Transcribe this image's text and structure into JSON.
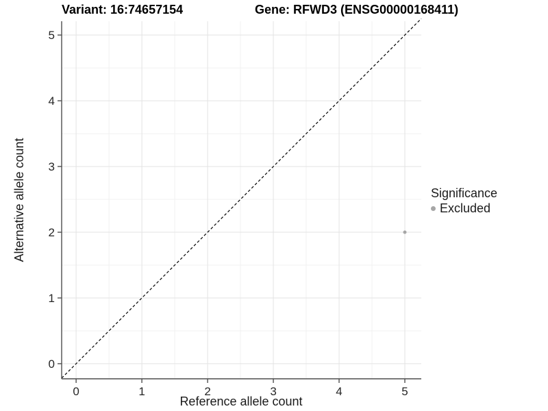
{
  "titles": {
    "variant": "Variant: 16:74657154",
    "gene": "Gene: RFWD3 (ENSG00000168411)"
  },
  "chart_data": {
    "type": "scatter",
    "title_left": "Variant: 16:74657154",
    "title_right": "Gene: RFWD3 (ENSG00000168411)",
    "xlabel": "Reference allele count",
    "ylabel": "Alternative allele count",
    "xlim": [
      -0.22,
      5.25
    ],
    "ylim": [
      -0.23,
      5.21
    ],
    "xticks": [
      0,
      1,
      2,
      3,
      4,
      5
    ],
    "yticks": [
      0,
      1,
      2,
      3,
      4,
      5
    ],
    "minor_ticks_x": [
      0.5,
      1.5,
      2.5,
      3.5,
      4.5
    ],
    "minor_ticks_y": [
      0.5,
      1.5,
      2.5,
      3.5,
      4.5
    ],
    "grid": true,
    "legend_position": "right",
    "series": [
      {
        "name": "Excluded",
        "color": "#a6a6a6",
        "points": [
          {
            "x": 5,
            "y": 2
          }
        ]
      }
    ],
    "reference_line": {
      "type": "identity",
      "slope": 1,
      "intercept": 0,
      "style": "dashed",
      "color": "#000000"
    },
    "legend": {
      "title": "Significance",
      "entries": [
        {
          "label": "Excluded",
          "color": "#a6a6a6"
        }
      ]
    },
    "colors": {
      "axis": "#4d4d4d",
      "tick_text": "#262626",
      "grid_major": "#e3e3e3",
      "grid_minor": "#f1f1f1",
      "background": "#ffffff"
    }
  }
}
